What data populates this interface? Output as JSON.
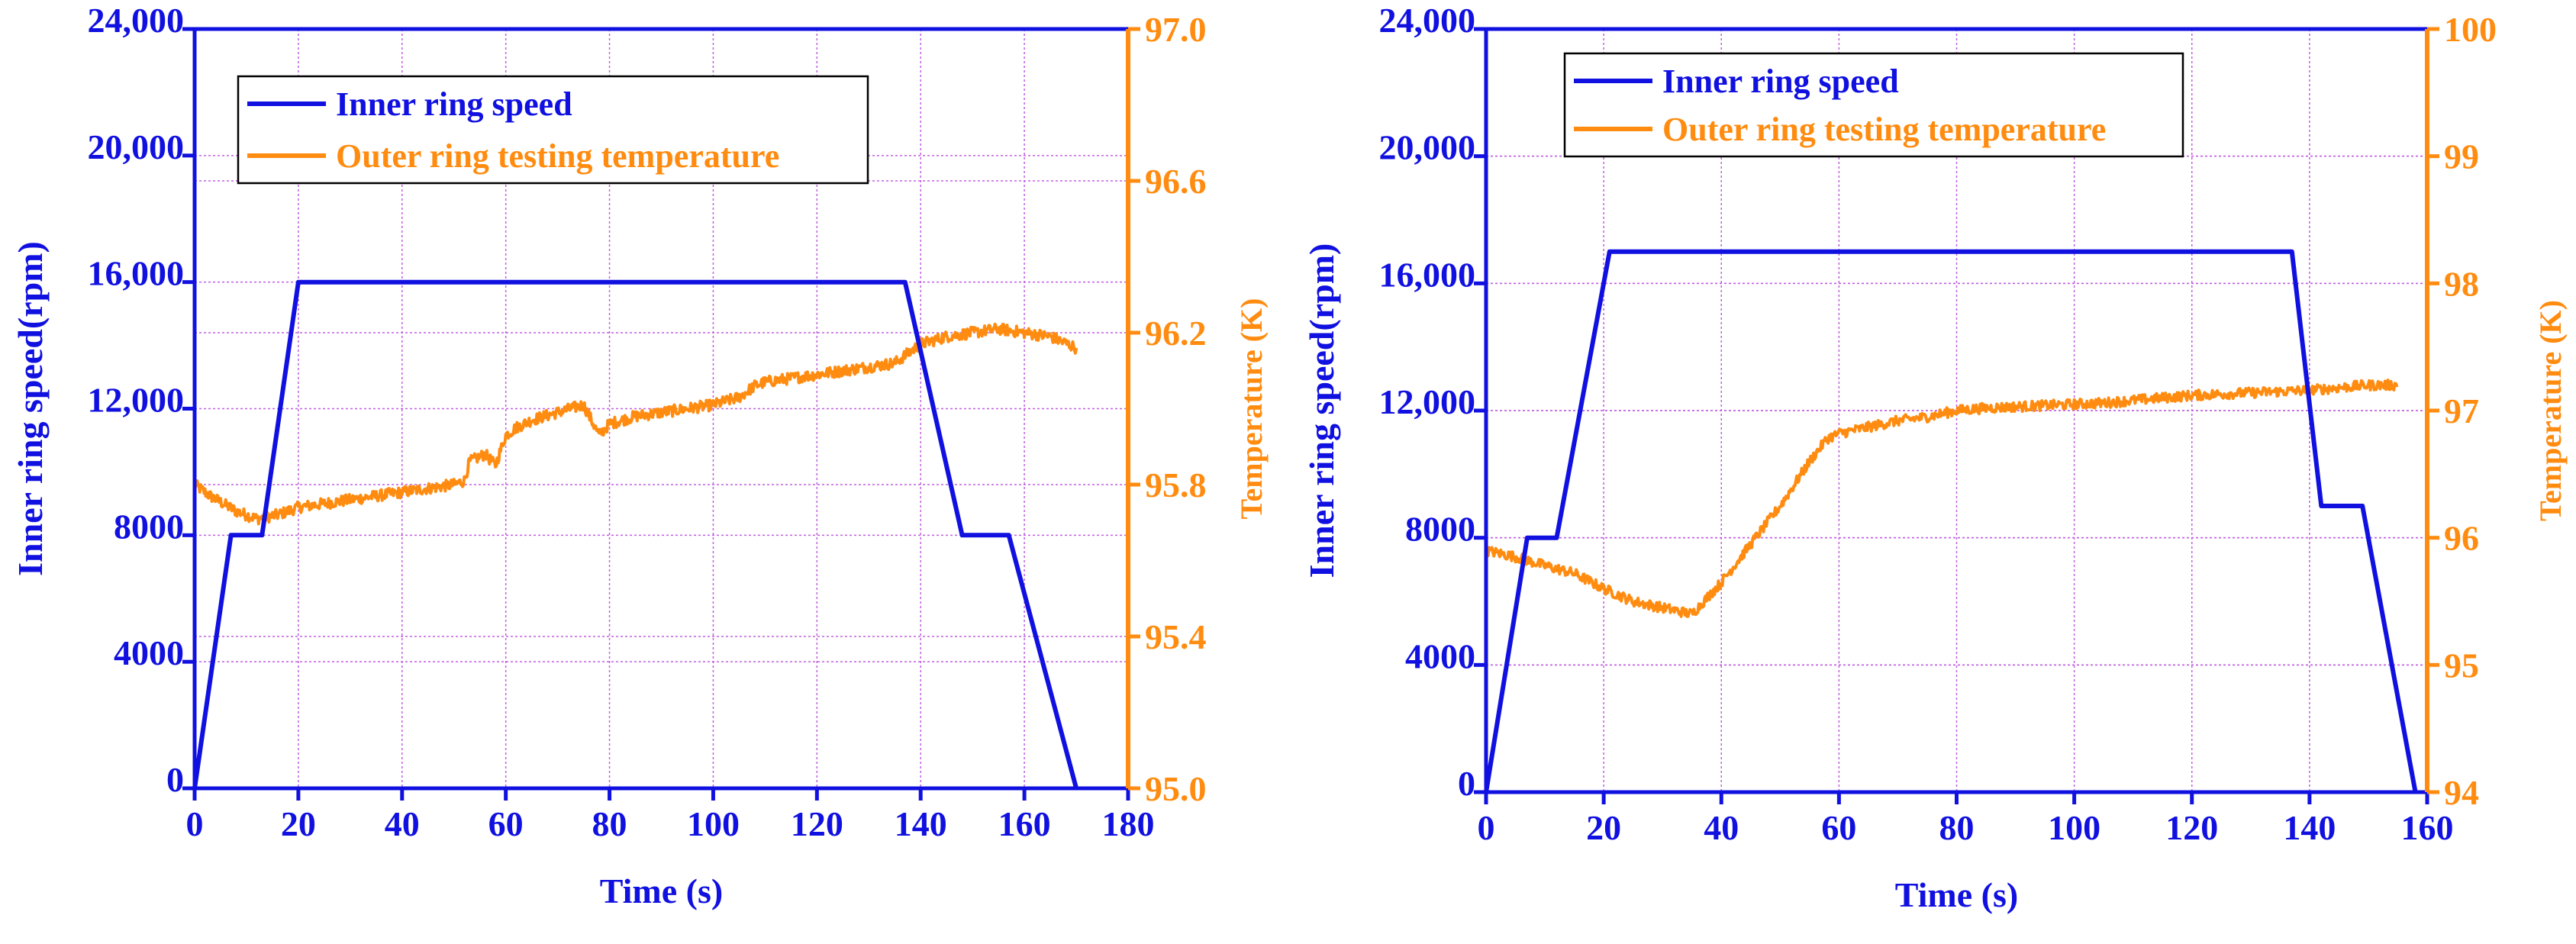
{
  "chart_data": [
    {
      "type": "line",
      "title": "",
      "xlabel": "Time (s)",
      "ylabel": "Inner ring speed(rpm)",
      "ylabel_right": "Temperature (K)",
      "xlim": [
        0,
        180
      ],
      "ylim": [
        0,
        24000
      ],
      "ylim_right": [
        95.0,
        97.0
      ],
      "x_ticks": [
        "0",
        "20",
        "40",
        "60",
        "80",
        "100",
        "120",
        "140",
        "160",
        "180"
      ],
      "y_ticks": [
        "0",
        "4000",
        "8000",
        "12,000",
        "16,000",
        "20,000",
        "24,000"
      ],
      "y_right_ticks": [
        "95.0",
        "95.4",
        "95.8",
        "96.2",
        "96.6",
        "97.0"
      ],
      "grid": true,
      "legend_position": "top-left",
      "colors": {
        "speed": "#1010e0",
        "temp": "#ff8c10",
        "grid": "#c060e0"
      },
      "series": [
        {
          "name": "Inner ring speed",
          "axis": "left",
          "x": [
            0,
            7,
            13,
            20,
            137,
            148,
            157,
            170
          ],
          "values": [
            0,
            8000,
            8000,
            16000,
            16000,
            8000,
            8000,
            0
          ]
        },
        {
          "name": "Outer ring testing temperature",
          "axis": "right",
          "noise": 0.03,
          "x": [
            0,
            3,
            8,
            12,
            16,
            20,
            25,
            30,
            35,
            40,
            45,
            50,
            52,
            53,
            56,
            58,
            60,
            62,
            65,
            70,
            75,
            78,
            80,
            85,
            90,
            95,
            100,
            105,
            108,
            110,
            115,
            120,
            125,
            130,
            135,
            138,
            140,
            145,
            150,
            155,
            160,
            165,
            170
          ],
          "values": [
            95.8,
            95.77,
            95.73,
            95.71,
            95.72,
            95.74,
            95.75,
            95.76,
            95.77,
            95.78,
            95.79,
            95.8,
            95.81,
            95.86,
            95.88,
            95.85,
            95.93,
            95.95,
            95.97,
            95.99,
            96.01,
            95.93,
            95.96,
            95.98,
            95.99,
            96.0,
            96.01,
            96.03,
            96.06,
            96.07,
            96.08,
            96.09,
            96.1,
            96.11,
            96.12,
            96.15,
            96.17,
            96.19,
            96.2,
            96.21,
            96.2,
            96.19,
            96.16
          ]
        }
      ]
    },
    {
      "type": "line",
      "title": "",
      "xlabel": "Time (s)",
      "ylabel": "Inner ring speed(rpm)",
      "ylabel_right": "Temperature (K)",
      "xlim": [
        0,
        160
      ],
      "ylim": [
        0,
        24000
      ],
      "ylim_right": [
        94,
        100
      ],
      "x_ticks": [
        "0",
        "20",
        "40",
        "60",
        "80",
        "100",
        "120",
        "140",
        "160"
      ],
      "y_ticks": [
        "0",
        "4000",
        "8000",
        "12,000",
        "16,000",
        "20,000",
        "24,000"
      ],
      "y_right_ticks": [
        "94",
        "95",
        "96",
        "97",
        "98",
        "99",
        "100"
      ],
      "grid": true,
      "legend_position": "top-left",
      "colors": {
        "speed": "#1010e0",
        "temp": "#ff8c10",
        "grid": "#c060e0"
      },
      "series": [
        {
          "name": "Inner ring speed",
          "axis": "left",
          "x": [
            0,
            7,
            12,
            21,
            137,
            142,
            149,
            158
          ],
          "values": [
            0,
            8000,
            8000,
            17000,
            17000,
            9000,
            9000,
            0
          ]
        },
        {
          "name": "Outer ring testing temperature",
          "axis": "right",
          "noise": 0.08,
          "x": [
            0,
            5,
            10,
            15,
            20,
            25,
            30,
            35,
            38,
            40,
            45,
            50,
            55,
            58,
            60,
            65,
            70,
            75,
            80,
            85,
            90,
            95,
            100,
            105,
            110,
            115,
            120,
            125,
            130,
            135,
            140,
            145,
            150,
            155
          ],
          "values": [
            95.9,
            95.85,
            95.78,
            95.72,
            95.6,
            95.5,
            95.45,
            95.4,
            95.55,
            95.65,
            95.95,
            96.25,
            96.6,
            96.78,
            96.82,
            96.87,
            96.92,
            96.95,
            97.0,
            97.02,
            97.03,
            97.04,
            97.05,
            97.06,
            97.08,
            97.1,
            97.12,
            97.13,
            97.14,
            97.15,
            97.16,
            97.18,
            97.2,
            97.2
          ]
        }
      ]
    }
  ]
}
